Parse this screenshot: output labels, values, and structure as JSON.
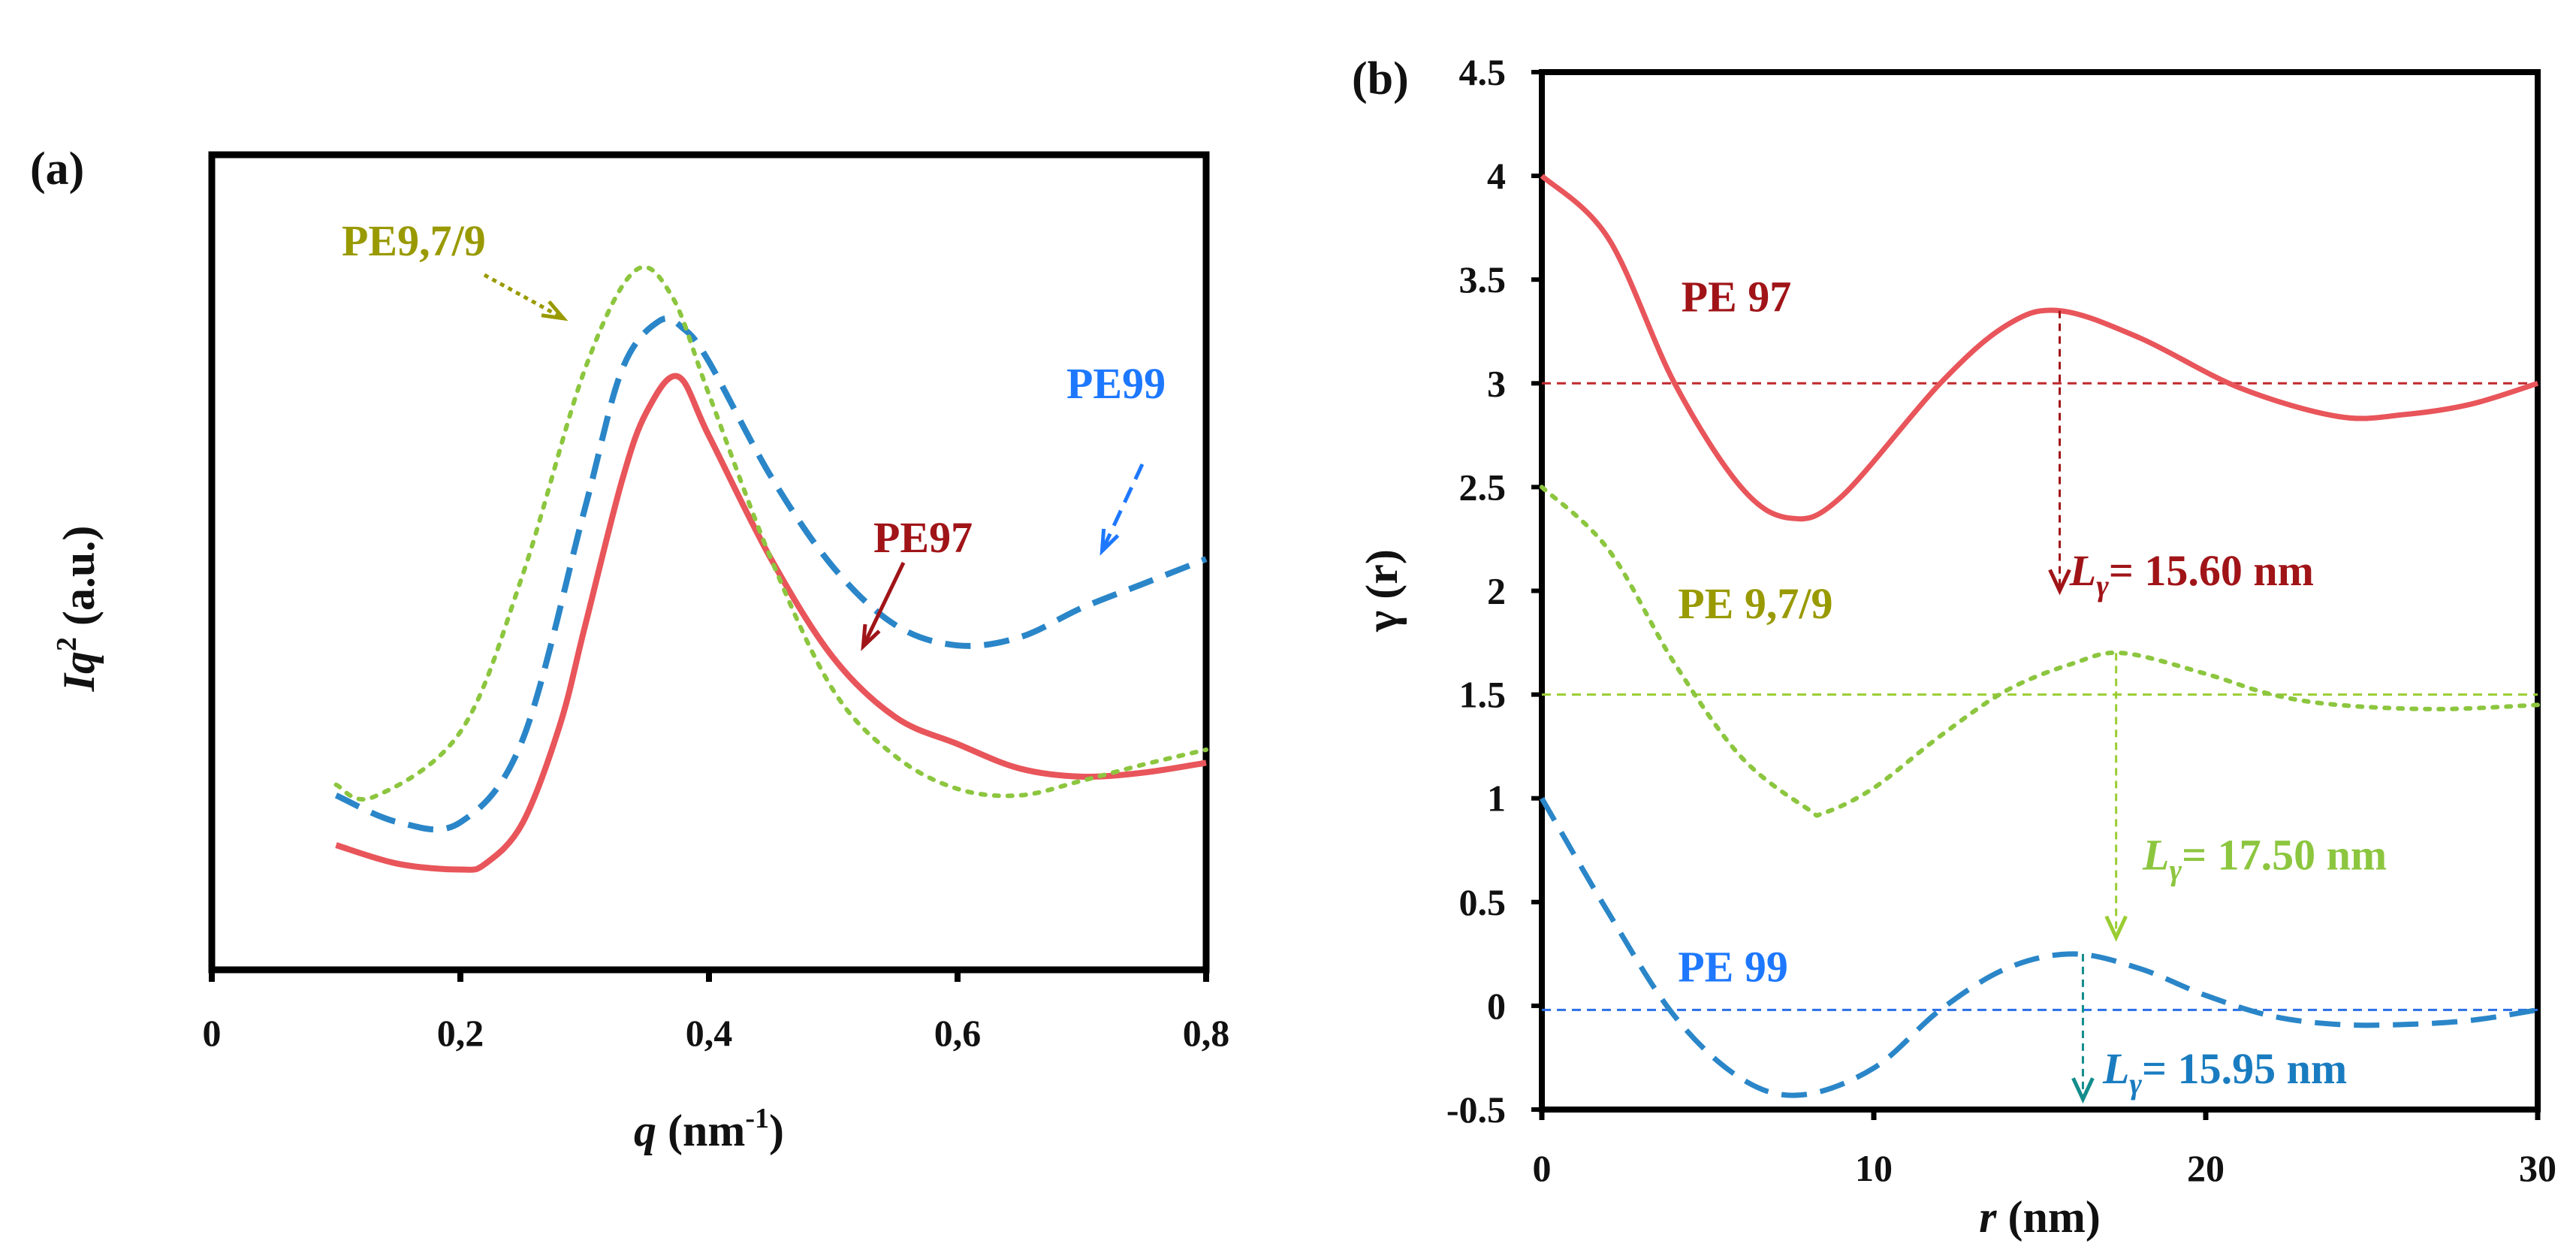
{
  "colors": {
    "pe97": "#e8555a",
    "pe97_text": "#a01418",
    "pe979": "#8cc63f",
    "pe979_text": "#999a00",
    "pe99": "#2a86c8",
    "pe99_text": "#1e78ff",
    "lg_green": "#8cc63f",
    "lg_blue": "#1a7cc0"
  },
  "chart_data": [
    {
      "type": "line",
      "panel_label": "(a)",
      "xlabel": "q (nm-1)",
      "xlabel_main": "q",
      "xlabel_unit": " (nm",
      "xlabel_exp": "-1",
      "xlabel_close": ")",
      "ylabel_I": "I",
      "ylabel_q": "q",
      "ylabel_exp": "2",
      "ylabel_rest": " (a.u.)",
      "xlim": [
        0,
        0.8
      ],
      "ylim": [
        0,
        1
      ],
      "xticks": [
        "0",
        "0,2",
        "0,4",
        "0,6",
        "0,8"
      ],
      "xtick_values": [
        0,
        0.2,
        0.4,
        0.6,
        0.8
      ],
      "series": [
        {
          "name": "PE97",
          "style": "solid",
          "x": [
            0.1,
            0.15,
            0.2,
            0.22,
            0.25,
            0.28,
            0.3,
            0.33,
            0.35,
            0.375,
            0.4,
            0.45,
            0.5,
            0.55,
            0.6,
            0.65,
            0.7,
            0.75,
            0.8
          ],
          "y": [
            0.153,
            0.13,
            0.123,
            0.13,
            0.18,
            0.3,
            0.42,
            0.6,
            0.685,
            0.728,
            0.655,
            0.504,
            0.383,
            0.31,
            0.277,
            0.247,
            0.237,
            0.242,
            0.254
          ]
        },
        {
          "name": "PE99",
          "style": "dashed",
          "x": [
            0.1,
            0.15,
            0.2,
            0.25,
            0.3,
            0.33,
            0.36,
            0.38,
            0.4,
            0.45,
            0.5,
            0.55,
            0.6,
            0.65,
            0.7,
            0.75,
            0.8
          ],
          "y": [
            0.214,
            0.181,
            0.181,
            0.282,
            0.565,
            0.736,
            0.796,
            0.786,
            0.746,
            0.605,
            0.494,
            0.423,
            0.398,
            0.408,
            0.444,
            0.474,
            0.504
          ]
        },
        {
          "name": "PE9,7/9",
          "style": "dotted",
          "x": [
            0.1,
            0.13,
            0.2,
            0.25,
            0.3,
            0.34,
            0.37,
            0.4,
            0.45,
            0.5,
            0.55,
            0.6,
            0.65,
            0.7,
            0.75,
            0.8
          ],
          "y": [
            0.227,
            0.212,
            0.292,
            0.484,
            0.736,
            0.857,
            0.827,
            0.706,
            0.504,
            0.343,
            0.262,
            0.222,
            0.214,
            0.232,
            0.252,
            0.27
          ]
        }
      ],
      "annotations": [
        "PE9,7/9",
        "PE99",
        "PE97"
      ]
    },
    {
      "type": "line",
      "panel_label": "(b)",
      "xlabel_main": "r",
      "xlabel_rest": " (nm)",
      "ylabel": "γ (r)",
      "xlim": [
        0,
        30
      ],
      "ylim": [
        -0.5,
        4.5
      ],
      "xticks": [
        "0",
        "10",
        "20",
        "30"
      ],
      "xtick_values": [
        0,
        10,
        20,
        30
      ],
      "yticks": [
        "-0.5",
        "0",
        "0.5",
        "1",
        "1.5",
        "2",
        "2.5",
        "3",
        "3.5",
        "4",
        "4.5"
      ],
      "ytick_values": [
        -0.5,
        0,
        0.5,
        1,
        1.5,
        2,
        2.5,
        3,
        3.5,
        4,
        4.5
      ],
      "series": [
        {
          "name": "PE 97",
          "style": "solid",
          "x": [
            0,
            2,
            4,
            6,
            7.5,
            9,
            12,
            14,
            15.6,
            18,
            21,
            24,
            26,
            28,
            30
          ],
          "y": [
            4,
            3.7,
            3.0,
            2.5,
            2.35,
            2.45,
            3.0,
            3.28,
            3.35,
            3.22,
            2.98,
            2.84,
            2.85,
            2.9,
            3.0
          ],
          "baseline": 3.0,
          "long_period": 15.6,
          "long_period_label": "= 15.60 nm"
        },
        {
          "name": "PE 9,7/9",
          "style": "dotted",
          "x": [
            0,
            2,
            4,
            6,
            8,
            8.5,
            10,
            12,
            14,
            16,
            17.5,
            20,
            22,
            24,
            27,
            30
          ],
          "y": [
            2.5,
            2.2,
            1.65,
            1.2,
            0.95,
            0.93,
            1.05,
            1.3,
            1.52,
            1.65,
            1.7,
            1.6,
            1.5,
            1.45,
            1.43,
            1.45
          ],
          "baseline": 1.5,
          "long_period": 17.5,
          "long_period_label": "= 17.50 nm"
        },
        {
          "name": "PE 99",
          "style": "dashed",
          "x": [
            0,
            2,
            4,
            6,
            7.8,
            10,
            12,
            14,
            16,
            18,
            20,
            22,
            24,
            26,
            28,
            30
          ],
          "y": [
            1.0,
            0.45,
            -0.05,
            -0.35,
            -0.43,
            -0.3,
            -0.02,
            0.18,
            0.25,
            0.18,
            0.05,
            -0.05,
            -0.09,
            -0.09,
            -0.07,
            -0.02
          ],
          "baseline": -0.02,
          "long_period": 15.95,
          "long_period_label": "= 15.95 nm"
        }
      ],
      "lgamma_L": "L",
      "lgamma_sub": "γ"
    }
  ]
}
